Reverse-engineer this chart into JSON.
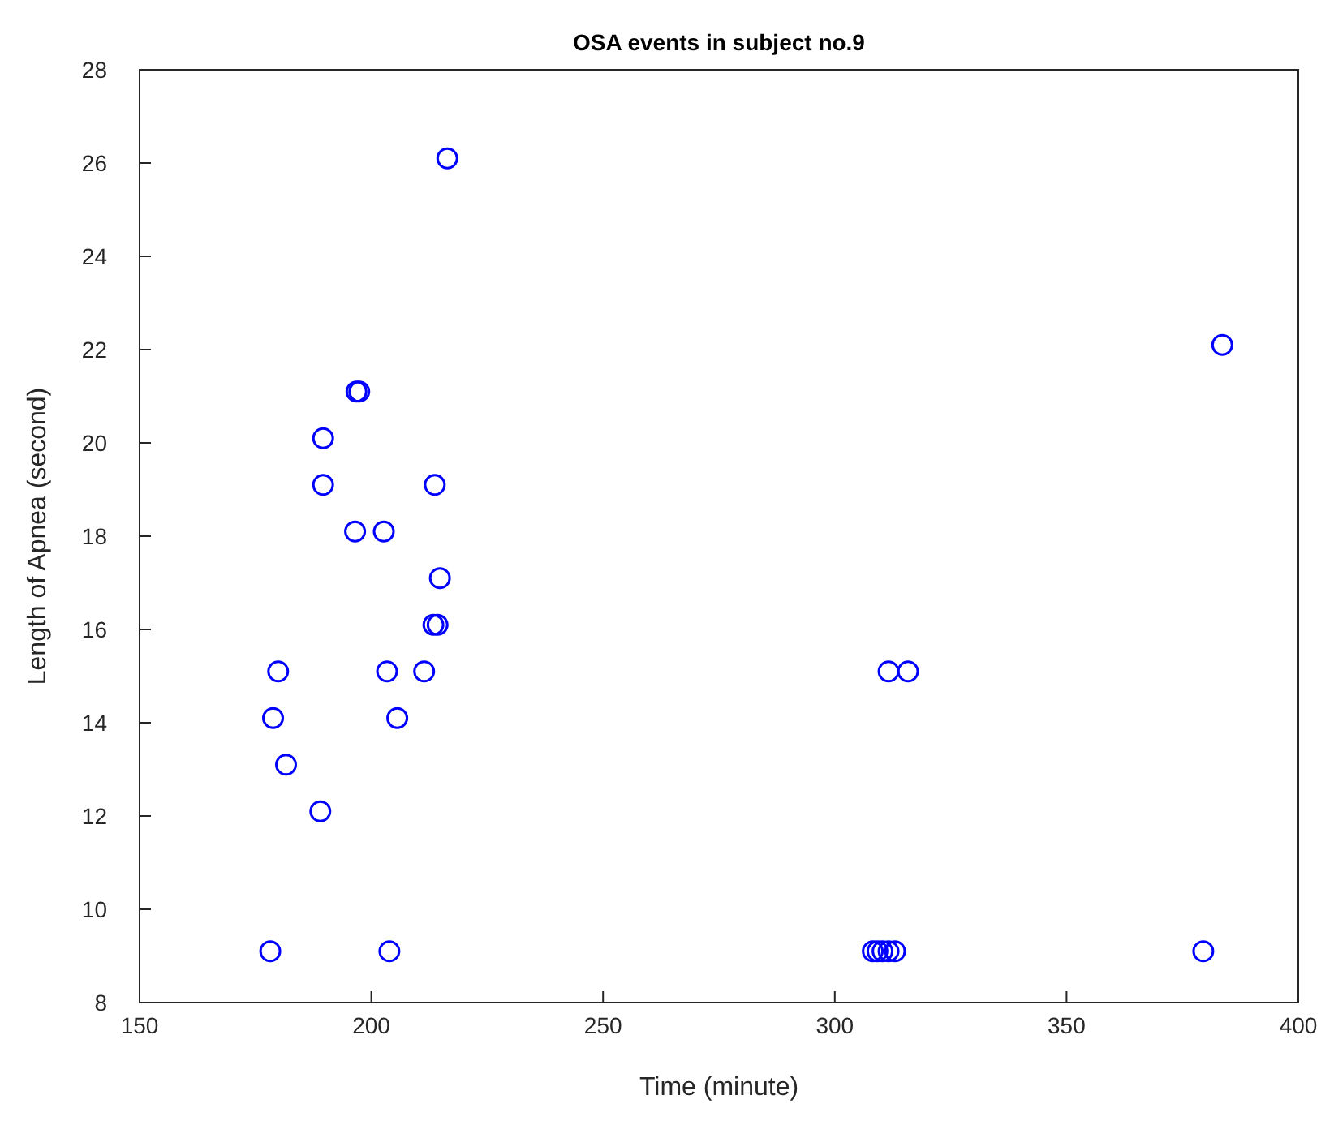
{
  "chart_data": {
    "type": "scatter",
    "title": "OSA events in subject no.9",
    "xlabel": "Time (minute)",
    "ylabel": "Length of Apnea (second)",
    "x": [
      178.2,
      203.9,
      179.9,
      178.8,
      181.6,
      189.0,
      189.6,
      189.6,
      196.5,
      202.7,
      196.8,
      197.4,
      213.7,
      214.8,
      213.4,
      214.3,
      203.4,
      211.4,
      205.6,
      216.4,
      311.6,
      315.8,
      383.6,
      379.5,
      308.2,
      309.2,
      310.3,
      311.6,
      313.0
    ],
    "series": [
      {
        "color": "#0000ff",
        "values": [
          9.1,
          9.1,
          15.1,
          14.1,
          13.1,
          12.1,
          20.1,
          19.1,
          18.1,
          18.1,
          21.1,
          21.1,
          19.1,
          17.1,
          16.1,
          16.1,
          15.1,
          15.1,
          14.1,
          26.1,
          15.1,
          15.1,
          22.1,
          9.1,
          9.1,
          9.1,
          9.1,
          9.1,
          9.1
        ]
      }
    ],
    "marker": "circle",
    "grid": false,
    "xlim": [
      150,
      400
    ],
    "xticks": [
      150,
      200,
      250,
      300,
      350,
      400
    ],
    "ylim": [
      8,
      28
    ],
    "yticks": [
      8,
      10,
      12,
      14,
      16,
      18,
      20,
      22,
      24,
      26,
      28
    ]
  }
}
